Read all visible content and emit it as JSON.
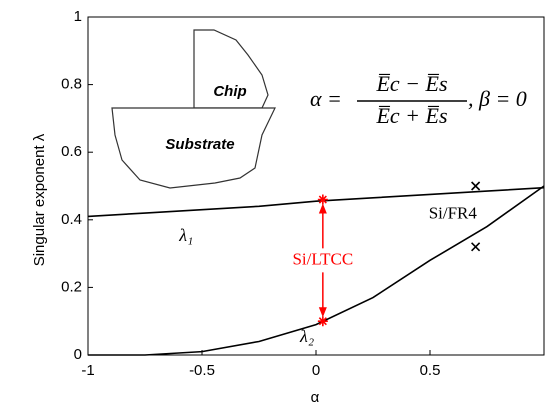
{
  "chart_data": {
    "type": "line",
    "x_label": "α",
    "y_label": "Singular exponent λ",
    "xlim": [
      -1,
      1
    ],
    "ylim": [
      0,
      1
    ],
    "xticks": [
      -1,
      -0.5,
      0,
      0.5
    ],
    "yticks": [
      0,
      0.2,
      0.4,
      0.6,
      0.8,
      1
    ],
    "x": [
      -1,
      -0.75,
      -0.5,
      -0.25,
      0,
      0.25,
      0.5,
      0.75,
      1
    ],
    "series": [
      {
        "name": "λ₁",
        "color": "#000000",
        "values": [
          0.41,
          0.42,
          0.43,
          0.44,
          0.455,
          0.465,
          0.475,
          0.485,
          0.495
        ]
      },
      {
        "name": "λ₂",
        "color": "#000000",
        "values": [
          0,
          0,
          0.01,
          0.04,
          0.09,
          0.17,
          0.28,
          0.38,
          0.5
        ]
      }
    ],
    "points": [
      {
        "x": 0.03,
        "y": 0.46,
        "color": "#ff0000",
        "marker": "asterisk"
      },
      {
        "x": 0.03,
        "y": 0.1,
        "color": "#ff0000",
        "marker": "asterisk"
      },
      {
        "x": 0.7,
        "y": 0.5,
        "color": "#000000",
        "marker": "cross"
      },
      {
        "x": 0.7,
        "y": 0.32,
        "color": "#000000",
        "marker": "cross"
      }
    ],
    "annotations": {
      "ltcc": "Si/LTCC",
      "fr4": "Si/FR4",
      "chip": "Chip",
      "substrate": "Substrate",
      "formula_lhs": "α =",
      "formula_num": "E̅c − E̅s",
      "formula_den": "E̅c + E̅s",
      "formula_rhs": ", β = 0"
    }
  }
}
